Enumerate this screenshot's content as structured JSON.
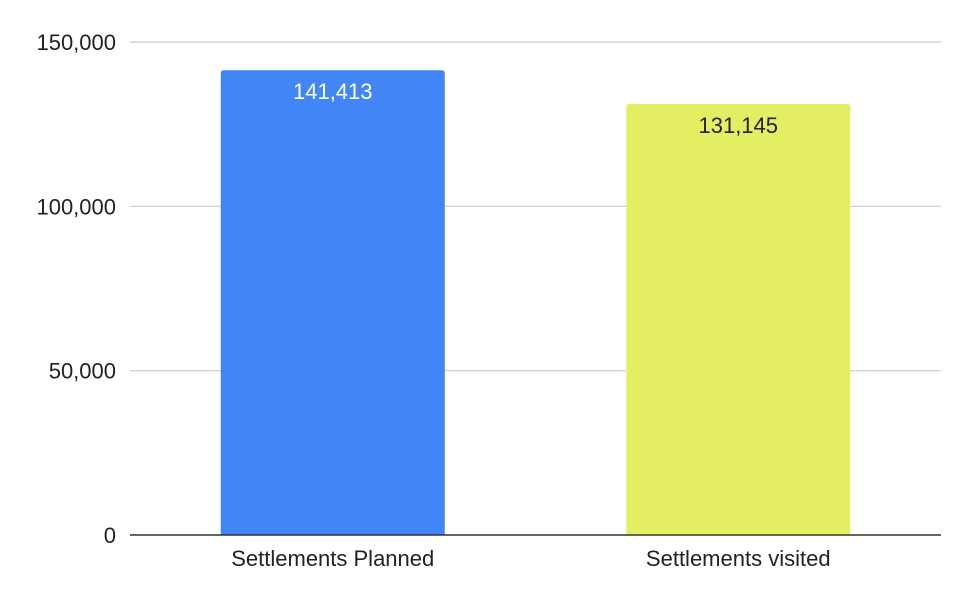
{
  "chart_data": {
    "type": "bar",
    "title": "",
    "xlabel": "",
    "ylabel": "",
    "categories": [
      "Settlements Planned",
      "Settlements visited"
    ],
    "values": [
      141413,
      131145
    ],
    "value_labels": [
      "141,413",
      "131,145"
    ],
    "bar_colors": [
      "#4285f4",
      "#e3ee63"
    ],
    "label_colors": [
      "#ffffff",
      "#222222"
    ],
    "ylim": [
      0,
      150000
    ],
    "yticks": [
      0,
      50000,
      100000,
      150000
    ],
    "ytick_labels": [
      "0",
      "50,000",
      "100,000",
      "150,000"
    ],
    "grid": true,
    "grid_color": "#cccccc",
    "axis_color": "#333333",
    "legend": "none"
  }
}
